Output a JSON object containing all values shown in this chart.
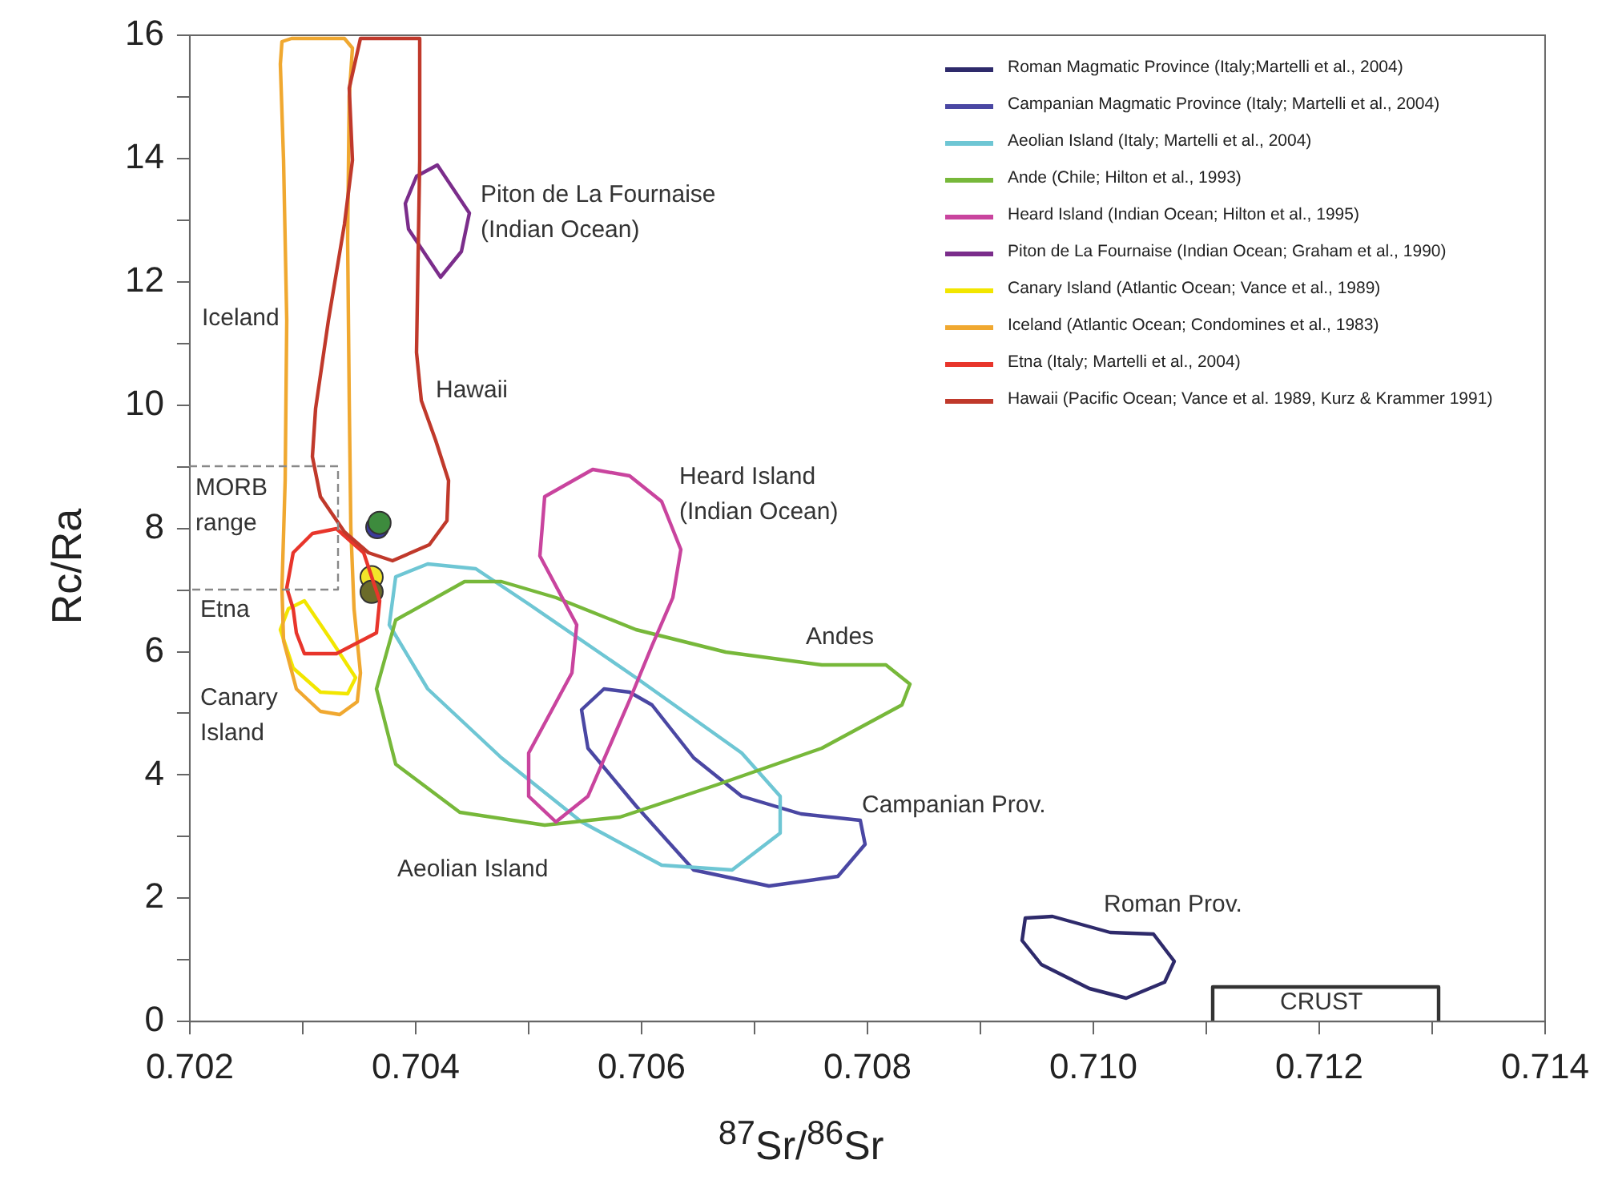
{
  "chart_data": {
    "type": "scatter",
    "xlabel": "$^{87}$Sr/$^{86}$Sr",
    "ylabel": "Rc/Ra",
    "xlim": [
      0.702,
      0.714
    ],
    "ylim": [
      0,
      16
    ],
    "xticks": [
      0.702,
      {
        "value": 0.703,
        "label": null
      },
      0.704,
      {
        "value": 0.705,
        "label": null
      },
      0.706,
      {
        "value": 0.707,
        "label": null
      },
      0.708,
      {
        "value": 0.709,
        "label": null
      },
      {
        "value": 0.71,
        "label": "0.710"
      },
      {
        "value": 0.711,
        "label": null
      },
      0.712,
      {
        "value": 0.713,
        "label": null
      },
      0.714
    ],
    "yticks": [
      0,
      {
        "value": 1,
        "label": null
      },
      2,
      {
        "value": 3,
        "label": null
      },
      4,
      {
        "value": 5,
        "label": null
      },
      6,
      {
        "value": 7,
        "label": null
      },
      8,
      {
        "value": 9,
        "label": null
      },
      10,
      {
        "value": 11,
        "label": null
      },
      12,
      {
        "value": 13,
        "label": null
      },
      14,
      {
        "value": 15,
        "label": null
      },
      16
    ],
    "grid": false,
    "legend": "top right",
    "marker": "circle",
    "series": [
      {
        "name": "Roman Magmatic Province (Italy;Martelli et al., 2004)",
        "color": "#2e2a6b"
      },
      {
        "name": "Campanian Magmatic Province (Italy; Martelli et al., 2004)",
        "color": "#4a47a3"
      },
      {
        "name": "Aeolian Island (Italy; Martelli et al., 2004)",
        "color": "#6ec6d4"
      },
      {
        "name": "Ande (Chile; Hilton et al., 1993)",
        "color": "#77b83a"
      },
      {
        "name": "Heard Island (Indian Ocean; Hilton et al., 1995)",
        "color": "#c9449e"
      },
      {
        "name": "Piton de La Fournaise (Indian Ocean; Graham et al., 1990)",
        "color": "#7b2d8b"
      },
      {
        "name": "Canary Island (Atlantic Ocean; Vance et al., 1989)",
        "color": "#f2e600"
      },
      {
        "name": "Iceland (Atlantic Ocean; Condomines et al., 1983)",
        "color": "#f0a830"
      },
      {
        "name": "Etna (Italy; Martelli et al., 2004)",
        "color": "#e8352b"
      },
      {
        "name": "Hawaii (Pacific Ocean; Vance et al. 1989, Kurz & Krammer 1991)",
        "color": "#c0392b"
      },
      {
        "color": "#3d8b3d",
        "x": [
          0.70368
        ],
        "values": [
          8.09
        ]
      },
      {
        "color": "#3b3b9b",
        "x": [
          0.70366
        ],
        "values": [
          8.02
        ]
      },
      {
        "color": "#6b6b2a",
        "x": [
          0.70361
        ],
        "values": [
          6.97
        ]
      },
      {
        "color": "#f2e52a",
        "x": [
          0.70361
        ],
        "values": [
          7.21
        ]
      }
    ],
    "annotations": [
      "Iceland",
      "Hawaii",
      "Piton de La Fournaise\n(Indian Ocean)",
      "Heard Island\n(Indian Ocean)",
      "Andes",
      "Campanian Prov.",
      "Aeolian Island",
      "Roman Prov.",
      "Canary\nIsland",
      "Etna",
      "MORB\nrange",
      "CRUST"
    ]
  }
}
